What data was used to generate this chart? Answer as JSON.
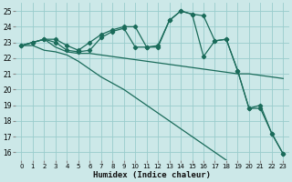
{
  "xlabel": "Humidex (Indice chaleur)",
  "bg_color": "#cce8e8",
  "grid_color": "#99cccc",
  "line_color": "#1a6b5a",
  "xlim": [
    -0.5,
    23.5
  ],
  "ylim": [
    15.5,
    25.5
  ],
  "yticks": [
    16,
    17,
    18,
    19,
    20,
    21,
    22,
    23,
    24,
    25
  ],
  "xticks": [
    0,
    1,
    2,
    3,
    4,
    5,
    6,
    7,
    8,
    9,
    10,
    11,
    12,
    13,
    14,
    15,
    16,
    17,
    18,
    19,
    20,
    21,
    22,
    23
  ],
  "series_markers": [
    [
      22.8,
      23.0,
      23.2,
      23.2,
      22.8,
      22.5,
      23.0,
      23.5,
      23.8,
      24.0,
      24.0,
      22.7,
      22.8,
      24.4,
      25.0,
      24.8,
      24.7,
      23.1,
      23.2,
      21.2,
      18.8,
      19.0,
      17.2,
      15.9
    ],
    [
      22.8,
      23.0,
      23.2,
      23.0,
      22.5,
      22.4,
      22.5,
      23.3,
      23.7,
      23.9,
      22.7,
      22.7,
      22.7,
      24.4,
      25.0,
      24.8,
      22.1,
      23.1,
      23.2,
      21.2,
      18.8,
      18.8,
      17.2,
      15.9
    ]
  ],
  "series_plain": [
    [
      22.8,
      23.0,
      23.2,
      22.7,
      22.4,
      22.3,
      22.3,
      22.2,
      22.1,
      22.0,
      21.9,
      21.8,
      21.7,
      21.6,
      21.5,
      21.4,
      21.3,
      21.2,
      21.1,
      21.0,
      21.0,
      20.9,
      20.8,
      20.7
    ],
    [
      22.8,
      22.8,
      22.5,
      22.4,
      22.2,
      21.8,
      21.3,
      20.8,
      20.4,
      20.0,
      19.5,
      19.0,
      18.5,
      18.0,
      17.5,
      17.0,
      16.5,
      16.0,
      15.5,
      null,
      null,
      null,
      null,
      null
    ]
  ]
}
